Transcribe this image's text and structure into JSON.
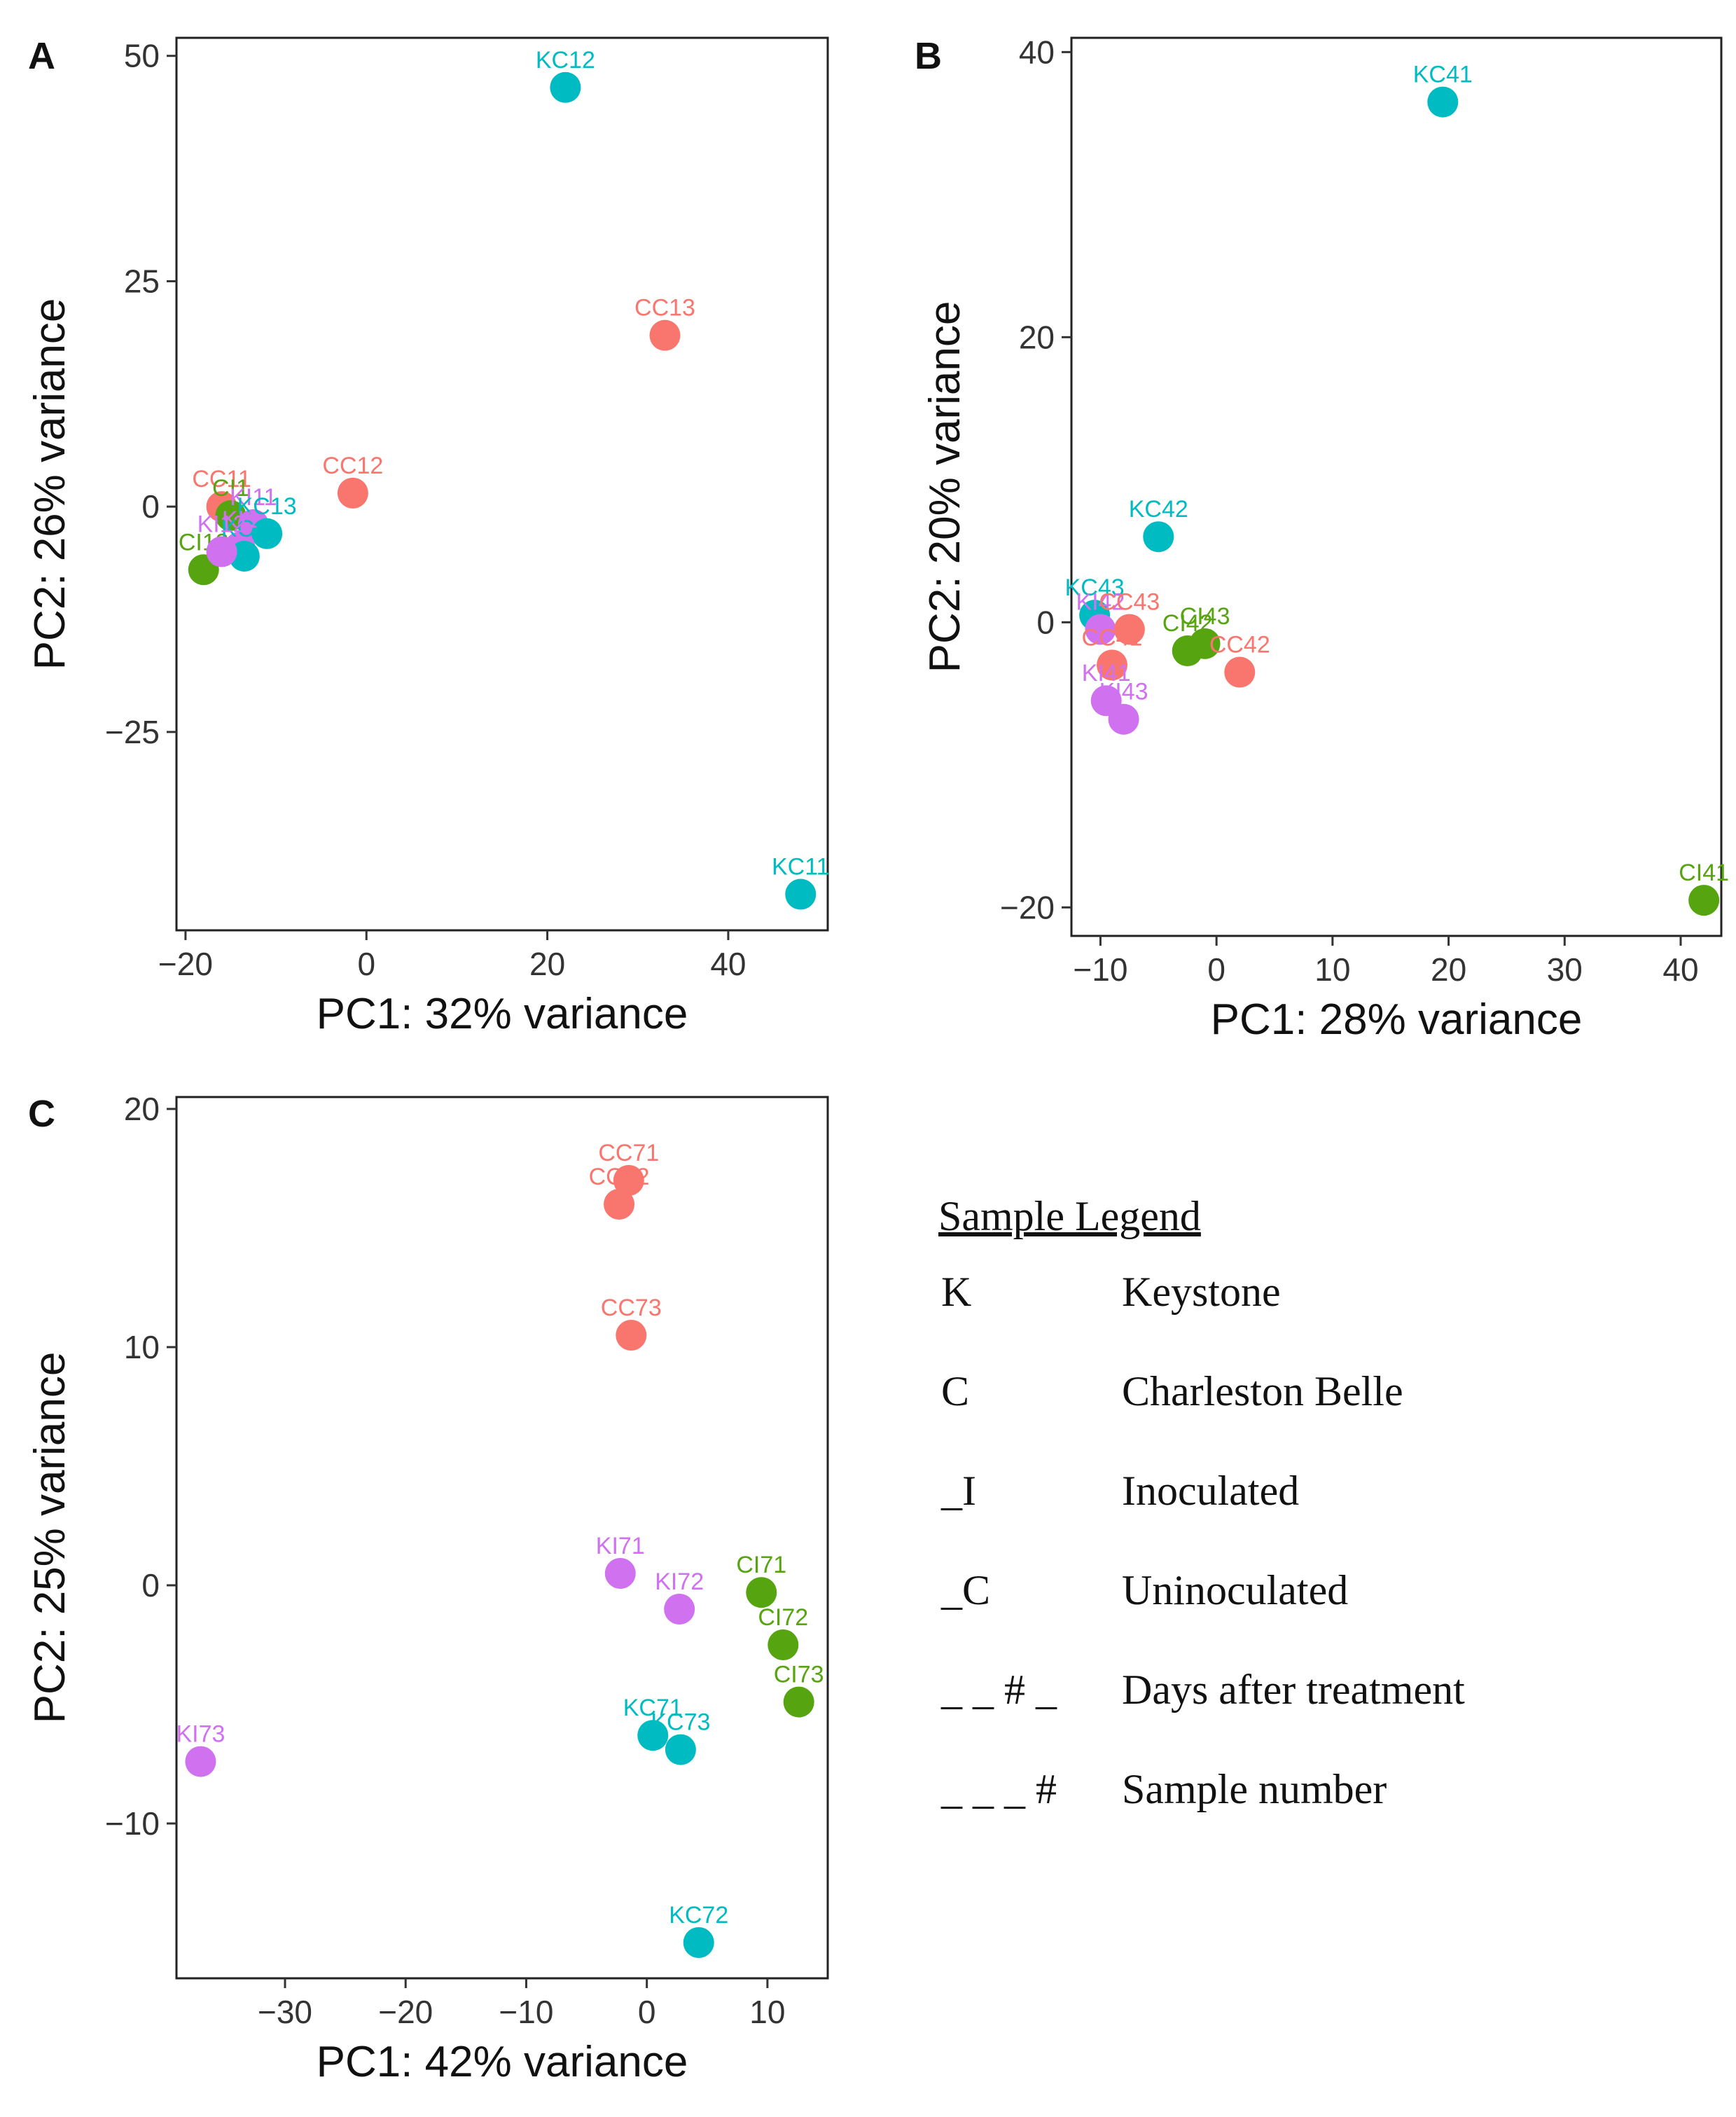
{
  "colors": {
    "C_uninoculated": "#F8766D",
    "C_inoculated": "#56A40F",
    "K_uninoculated": "#00BCC2",
    "K_inoculated": "#D071F0"
  },
  "legend": {
    "title": "Sample Legend",
    "items": [
      {
        "code": "K",
        "desc": "Keystone"
      },
      {
        "code": "C",
        "desc": "Charleston Belle"
      },
      {
        "code": "_I",
        "desc": "Inoculated"
      },
      {
        "code": "_C",
        "desc": "Uninoculated"
      },
      {
        "code": "_ _ # _",
        "desc": "Days after treatment"
      },
      {
        "code": "_ _ _ #",
        "desc": "Sample number"
      }
    ]
  },
  "chart_data": [
    {
      "panel": "A",
      "type": "scatter",
      "xlabel": "PC1: 32% variance",
      "ylabel": "PC2: 26% variance",
      "xlim": [
        -21,
        51
      ],
      "ylim": [
        -47,
        52
      ],
      "xticks": [
        -20,
        0,
        20,
        40
      ],
      "yticks": [
        -25,
        0,
        25,
        50
      ],
      "xtick_labels": [
        "−20",
        "0",
        "20",
        "40"
      ],
      "ytick_labels": [
        "−25",
        "0",
        "25",
        "50"
      ],
      "points": [
        {
          "label": "KC12",
          "x": 22,
          "y": 46.5,
          "group": "K_uninoculated"
        },
        {
          "label": "CC13",
          "x": 33,
          "y": 19,
          "group": "C_uninoculated"
        },
        {
          "label": "CC12",
          "x": -1.5,
          "y": 1.5,
          "group": "C_uninoculated"
        },
        {
          "label": "CC11",
          "x": -16,
          "y": 0,
          "group": "C_uninoculated"
        },
        {
          "label": "CI1",
          "x": -15,
          "y": -1,
          "group": "C_inoculated"
        },
        {
          "label": "KI11",
          "x": -12.5,
          "y": -2,
          "group": "K_inoculated"
        },
        {
          "label": "KC13",
          "x": -11,
          "y": -3,
          "group": "K_uninoculated"
        },
        {
          "label": "KI1",
          "x": -14,
          "y": -4.5,
          "group": "K_inoculated"
        },
        {
          "label": "CI13",
          "x": -18,
          "y": -7,
          "group": "C_inoculated"
        },
        {
          "label": "KC1",
          "x": -13.5,
          "y": -5.5,
          "group": "K_uninoculated"
        },
        {
          "label": "KI12",
          "x": -16,
          "y": -5,
          "group": "K_inoculated"
        },
        {
          "label": "KC11",
          "x": 48,
          "y": -43,
          "group": "K_uninoculated"
        }
      ]
    },
    {
      "panel": "B",
      "type": "scatter",
      "xlabel": "PC1: 28% variance",
      "ylabel": "PC2: 20% variance",
      "xlim": [
        -12.5,
        43.5
      ],
      "ylim": [
        -22,
        41
      ],
      "xticks": [
        -10,
        0,
        10,
        20,
        30,
        40
      ],
      "yticks": [
        -20,
        0,
        20,
        40
      ],
      "xtick_labels": [
        "−10",
        "0",
        "10",
        "20",
        "30",
        "40"
      ],
      "ytick_labels": [
        "−20",
        "0",
        "20",
        "40"
      ],
      "points": [
        {
          "label": "KC41",
          "x": 19.5,
          "y": 36.5,
          "group": "K_uninoculated"
        },
        {
          "label": "KC42",
          "x": -5,
          "y": 6,
          "group": "K_uninoculated"
        },
        {
          "label": "KC43",
          "x": -10.5,
          "y": 0.5,
          "group": "K_uninoculated"
        },
        {
          "label": "KI42",
          "x": -10,
          "y": -0.5,
          "group": "K_inoculated"
        },
        {
          "label": "CC43",
          "x": -7.5,
          "y": -0.5,
          "group": "C_uninoculated"
        },
        {
          "label": "CI43",
          "x": -1,
          "y": -1.5,
          "group": "C_inoculated"
        },
        {
          "label": "CI42",
          "x": -2.5,
          "y": -2,
          "group": "C_inoculated"
        },
        {
          "label": "CC42",
          "x": 2,
          "y": -3.5,
          "group": "C_uninoculated"
        },
        {
          "label": "CC41",
          "x": -9,
          "y": -3,
          "group": "C_uninoculated"
        },
        {
          "label": "KI41",
          "x": -9.5,
          "y": -5.5,
          "group": "K_inoculated"
        },
        {
          "label": "KI43",
          "x": -8,
          "y": -6.8,
          "group": "K_inoculated"
        },
        {
          "label": "CI41",
          "x": 42,
          "y": -19.5,
          "group": "C_inoculated"
        }
      ]
    },
    {
      "panel": "C",
      "type": "scatter",
      "xlabel": "PC1: 42% variance",
      "ylabel": "PC2: 25% variance",
      "xlim": [
        -39,
        15
      ],
      "ylim": [
        -16.5,
        20.5
      ],
      "xticks": [
        -30,
        -20,
        -10,
        0,
        10
      ],
      "yticks": [
        -10,
        0,
        10,
        20
      ],
      "xtick_labels": [
        "−30",
        "−20",
        "−10",
        "0",
        "10"
      ],
      "ytick_labels": [
        "−10",
        "0",
        "10",
        "20"
      ],
      "points": [
        {
          "label": "CC71",
          "x": -1.5,
          "y": 17,
          "group": "C_uninoculated"
        },
        {
          "label": "CC72",
          "x": -2.3,
          "y": 16,
          "group": "C_uninoculated"
        },
        {
          "label": "CC73",
          "x": -1.3,
          "y": 10.5,
          "group": "C_uninoculated"
        },
        {
          "label": "KI71",
          "x": -2.2,
          "y": 0.5,
          "group": "K_inoculated"
        },
        {
          "label": "KI72",
          "x": 2.7,
          "y": -1,
          "group": "K_inoculated"
        },
        {
          "label": "CI71",
          "x": 9.5,
          "y": -0.3,
          "group": "C_inoculated"
        },
        {
          "label": "CI72",
          "x": 11.3,
          "y": -2.5,
          "group": "C_inoculated"
        },
        {
          "label": "CI73",
          "x": 12.6,
          "y": -4.9,
          "group": "C_inoculated"
        },
        {
          "label": "KC71",
          "x": 0.5,
          "y": -6.3,
          "group": "K_uninoculated"
        },
        {
          "label": "KC73",
          "x": 2.8,
          "y": -6.9,
          "group": "K_uninoculated"
        },
        {
          "label": "KI73",
          "x": -37,
          "y": -7.4,
          "group": "K_inoculated"
        },
        {
          "label": "KC72",
          "x": 4.3,
          "y": -15,
          "group": "K_uninoculated"
        }
      ]
    }
  ]
}
